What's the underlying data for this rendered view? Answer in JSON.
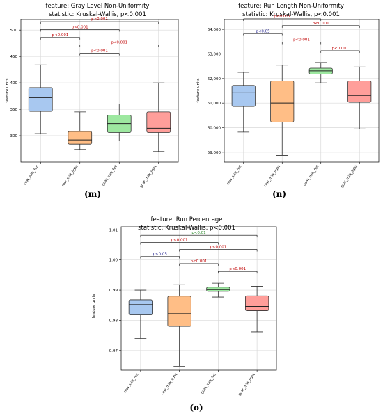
{
  "chart_data": [
    {
      "type": "boxplot",
      "panel_label": "(m)",
      "title": "feature: Gray Level Non-Uniformity",
      "subtitle": "statistic: Kruskal-Wallis, p<0.001",
      "ylabel": "feature units",
      "xlabel": "",
      "ylim": [
        250,
        520
      ],
      "yticks": [
        "300",
        "350",
        "400",
        "450",
        "500"
      ],
      "ytick_values": [
        300,
        350,
        400,
        450,
        500
      ],
      "grid": true,
      "categories": [
        "cow_milk_full",
        "cow_milk_light",
        "goat_milk_full",
        "goat_milk_light"
      ],
      "colors": [
        "#a8c8f0",
        "#ffbe86",
        "#9de8a0",
        "#ff9e9a"
      ],
      "boxes": [
        {
          "min": 304,
          "q1": 346,
          "median": 372,
          "q3": 391,
          "max": 434
        },
        {
          "min": 274,
          "q1": 284,
          "median": 292,
          "q3": 308,
          "max": 345
        },
        {
          "min": 290,
          "q1": 306,
          "median": 323,
          "q3": 339,
          "max": 360
        },
        {
          "min": 270,
          "q1": 306,
          "median": 314,
          "q3": 345,
          "max": 400
        }
      ],
      "comparisons": [
        {
          "from": 0,
          "to": 2,
          "y": 501,
          "label": "p<0.001",
          "color": "#c00000"
        },
        {
          "from": 0,
          "to": 1,
          "y": 486,
          "label": "p<0.001",
          "color": "#c00000"
        },
        {
          "from": 1,
          "to": 3,
          "y": 472,
          "label": "p<0.001",
          "color": "#c00000"
        },
        {
          "from": 0,
          "to": 3,
          "y": 516,
          "label": "p<0.001",
          "color": "#c00000"
        },
        {
          "from": 1,
          "to": 2,
          "y": 456,
          "label": "p<0.001",
          "color": "#c00000"
        }
      ]
    },
    {
      "type": "boxplot",
      "panel_label": "(n)",
      "title": "feature: Run Length Non-Uniformity",
      "subtitle": "statistic: Kruskal-Wallis, p<0.001",
      "ylabel": "feature units",
      "xlabel": "",
      "ylim": [
        58600,
        64400
      ],
      "yticks": [
        "59,000",
        "60,000",
        "61,000",
        "62,000",
        "63,000",
        "64,000"
      ],
      "ytick_values": [
        59000,
        60000,
        61000,
        62000,
        63000,
        64000
      ],
      "grid": true,
      "categories": [
        "cow_milk_full",
        "cow_milk_light",
        "goat_milk_full",
        "goat_milk_light"
      ],
      "colors": [
        "#a8c8f0",
        "#ffbe86",
        "#9de8a0",
        "#ff9e9a"
      ],
      "boxes": [
        {
          "min": 59820,
          "q1": 60860,
          "median": 61420,
          "q3": 61720,
          "max": 62250
        },
        {
          "min": 58870,
          "q1": 60230,
          "median": 61000,
          "q3": 61900,
          "max": 62540
        },
        {
          "min": 61820,
          "q1": 62180,
          "median": 62310,
          "q3": 62420,
          "max": 62650
        },
        {
          "min": 59950,
          "q1": 61030,
          "median": 61310,
          "q3": 61900,
          "max": 62470
        }
      ],
      "comparisons": [
        {
          "from": 0,
          "to": 2,
          "y": 64430,
          "label": "p<0.001",
          "color": "#c00000"
        },
        {
          "from": 0,
          "to": 1,
          "y": 63820,
          "label": "p<0.05",
          "color": "#1a1a8c"
        },
        {
          "from": 1,
          "to": 3,
          "y": 64150,
          "label": "p<0.001",
          "color": "#c00000"
        },
        {
          "from": 1,
          "to": 2,
          "y": 63480,
          "label": "p<0.001",
          "color": "#c00000"
        },
        {
          "from": 2,
          "to": 3,
          "y": 63130,
          "label": "p<0.001",
          "color": "#c00000"
        }
      ]
    },
    {
      "type": "boxplot",
      "panel_label": "(o)",
      "title": "feature: Run Percentage",
      "subtitle": "statistic: Kruskal-Wallis, p<0.001",
      "ylabel": "feature units",
      "xlabel": "",
      "ylim": [
        0.9635,
        1.011
      ],
      "yticks": [
        "0.97",
        "0.98",
        "0.99",
        "1.00",
        "1.01"
      ],
      "ytick_values": [
        0.97,
        0.98,
        0.99,
        1.0,
        1.01
      ],
      "grid": true,
      "categories": [
        "cow_milk_full",
        "cow_milk_light",
        "goat_milk_full",
        "goat_milk_light"
      ],
      "colors": [
        "#a8c8f0",
        "#ffbe86",
        "#9de8a0",
        "#ff9e9a"
      ],
      "boxes": [
        {
          "min": 0.974,
          "q1": 0.9818,
          "median": 0.9852,
          "q3": 0.9868,
          "max": 0.99
        },
        {
          "min": 0.9648,
          "q1": 0.978,
          "median": 0.9822,
          "q3": 0.988,
          "max": 0.9918
        },
        {
          "min": 0.9877,
          "q1": 0.9896,
          "median": 0.9902,
          "q3": 0.991,
          "max": 0.9923
        },
        {
          "min": 0.9762,
          "q1": 0.9832,
          "median": 0.9846,
          "q3": 0.9881,
          "max": 0.9913
        }
      ],
      "comparisons": [
        {
          "from": 0,
          "to": 3,
          "y": 1.0082,
          "label": "p<0.01",
          "color": "#2e8b2e"
        },
        {
          "from": 0,
          "to": 2,
          "y": 1.0058,
          "label": "p<0.001",
          "color": "#c00000"
        },
        {
          "from": 1,
          "to": 3,
          "y": 1.0035,
          "label": "p<0.001",
          "color": "#c00000"
        },
        {
          "from": 0,
          "to": 1,
          "y": 1.0012,
          "label": "p<0.05",
          "color": "#1a1a8c"
        },
        {
          "from": 1,
          "to": 2,
          "y": 0.9988,
          "label": "p<0.001",
          "color": "#c00000"
        },
        {
          "from": 2,
          "to": 3,
          "y": 0.9962,
          "label": "p<0.001",
          "color": "#c00000"
        }
      ]
    }
  ]
}
